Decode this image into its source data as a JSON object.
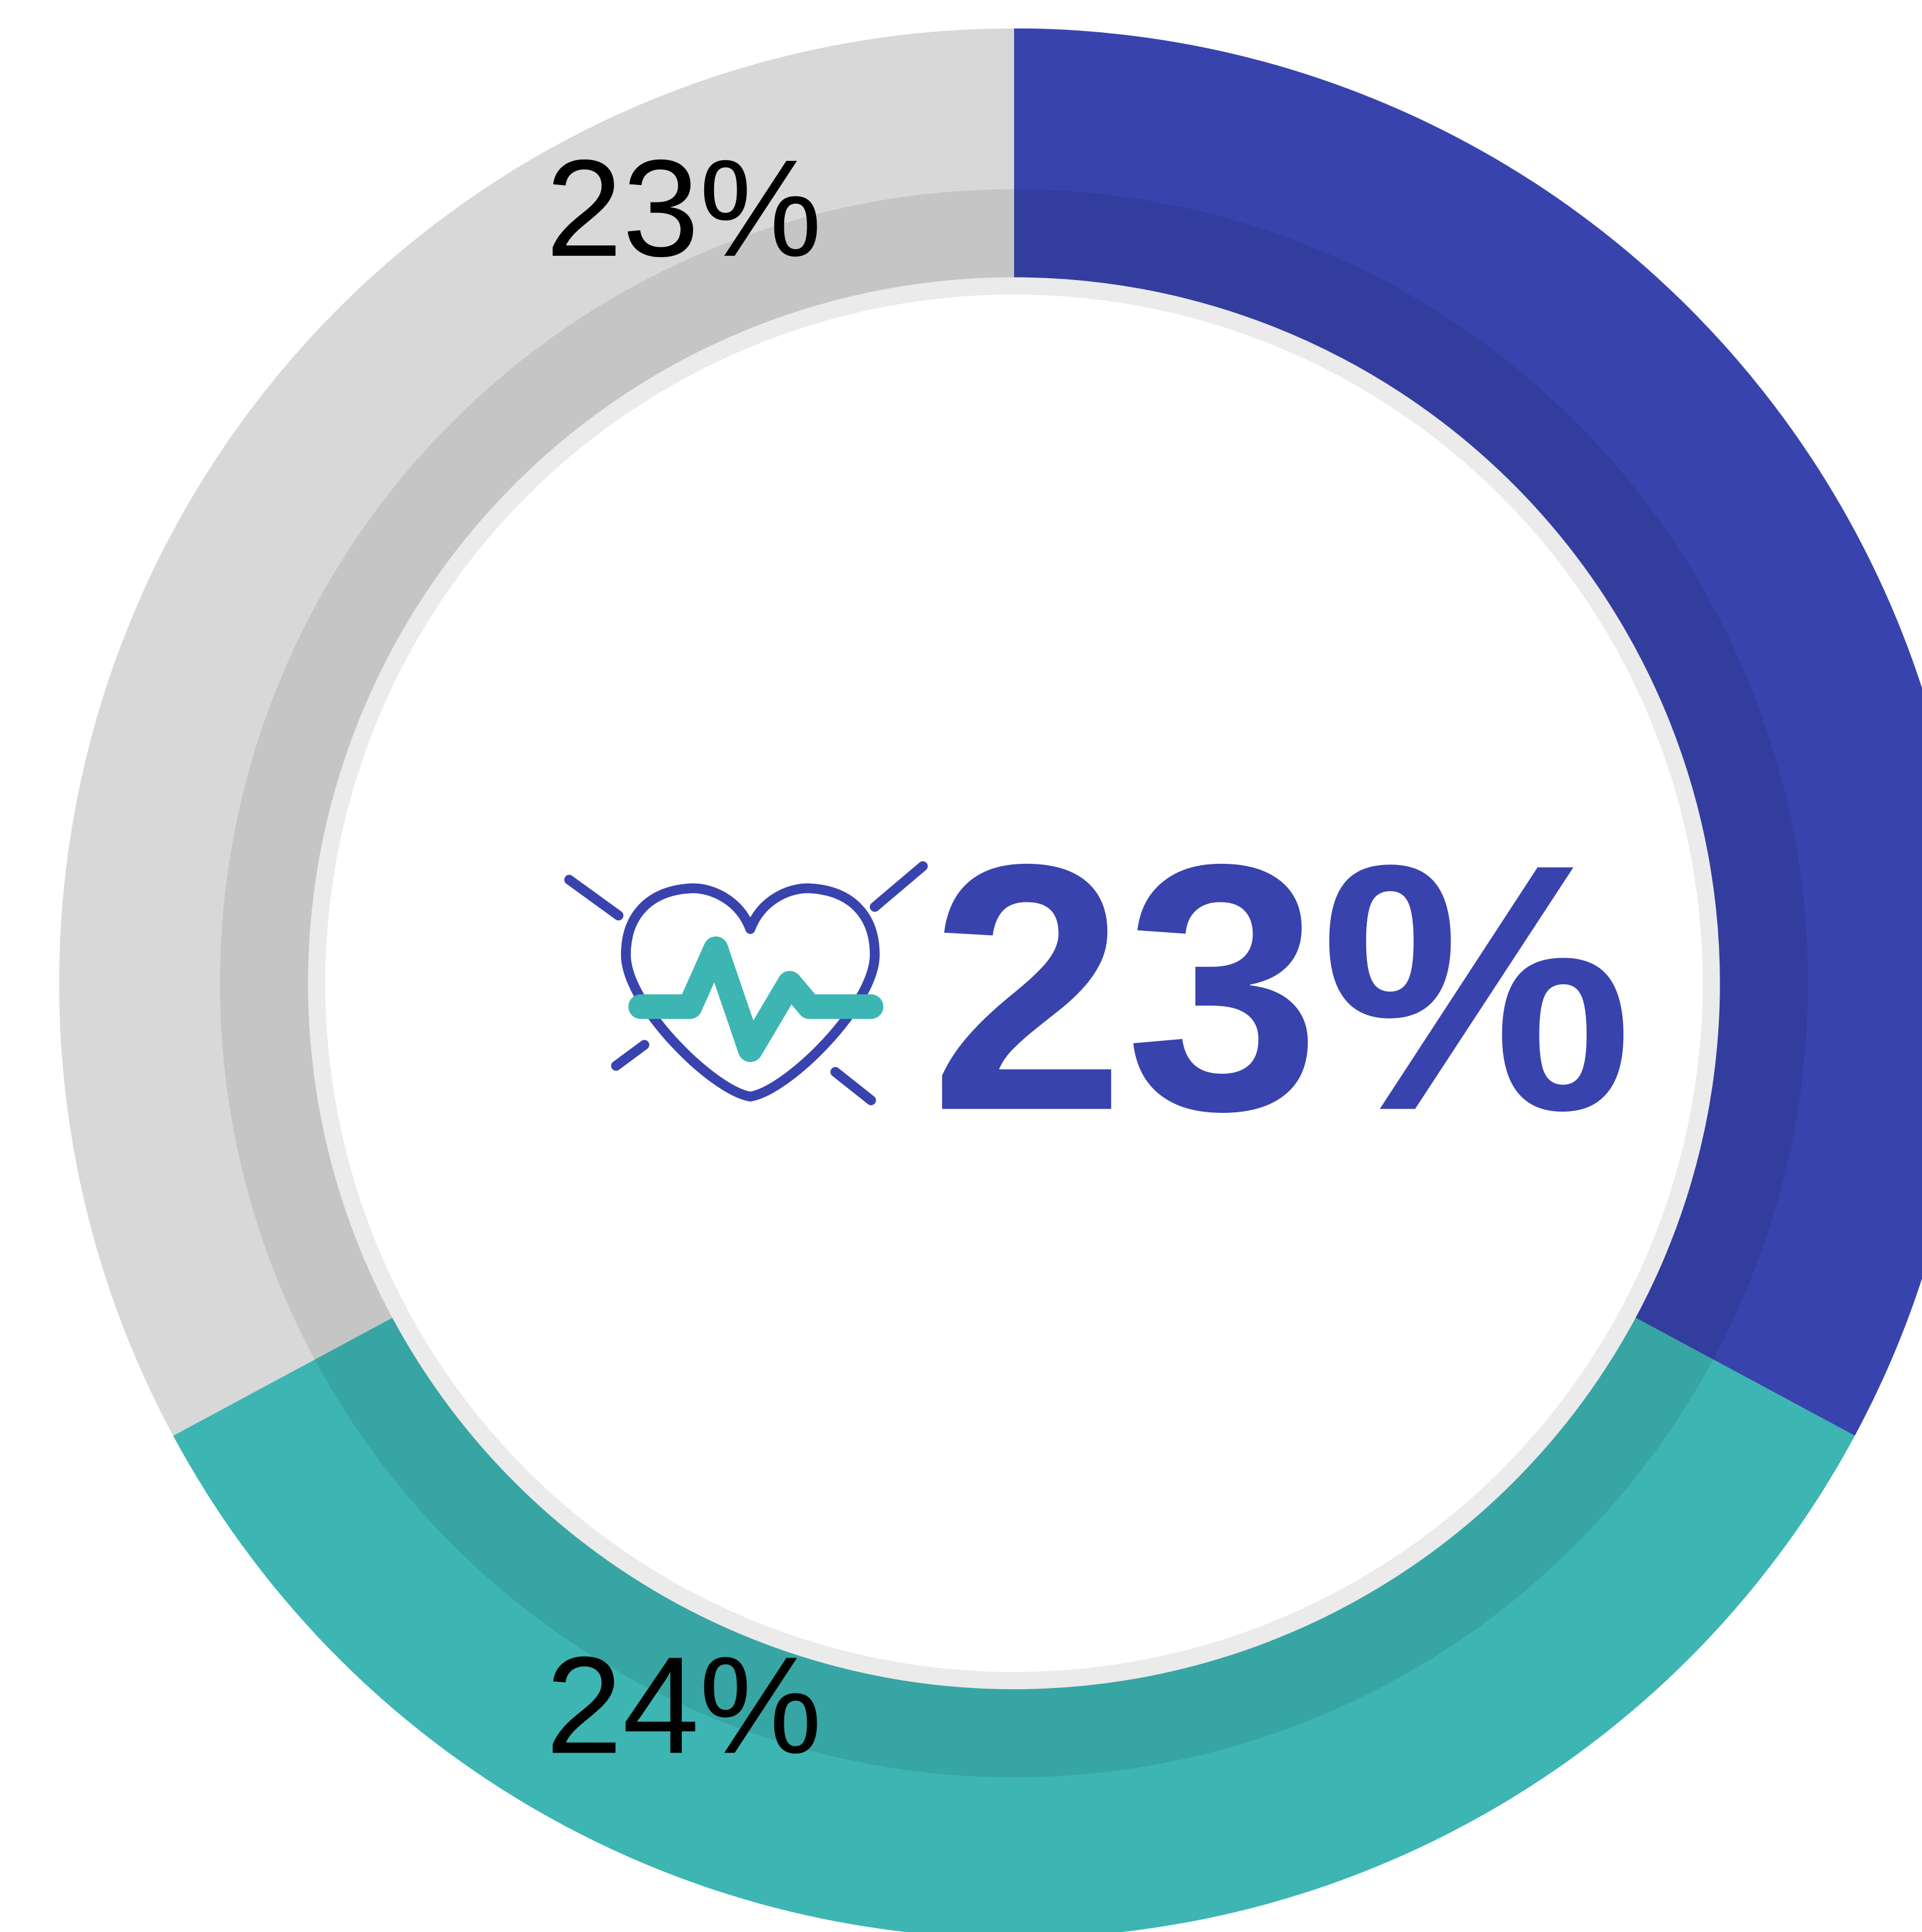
{
  "chart_data": {
    "type": "donut",
    "values": [
      23,
      24,
      23
    ],
    "value_labels": [
      "23%",
      "24%",
      "23%"
    ],
    "colors": [
      "#3843ad",
      "#3db5b3",
      "#d8d8d8"
    ]
  }
}
